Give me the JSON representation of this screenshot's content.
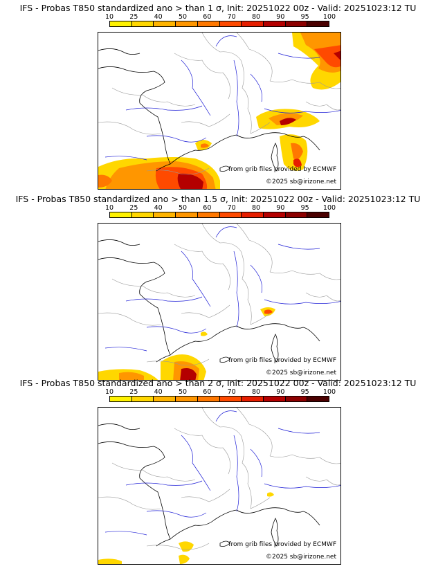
{
  "panels": [
    {
      "title": "IFS - Probas T850  standardized ano > than 1 σ, Init: 20251022 00z - Valid: 20251023:12 TU",
      "credit_source": "from grib files provided by ECMWF",
      "credit_copyright": "©2025 sb@irizone.net"
    },
    {
      "title": "IFS - Probas T850  standardized ano > than 1.5 σ, Init: 20251022 00z - Valid: 20251023:12 TU",
      "credit_source": "from grib files provided by ECMWF",
      "credit_copyright": "©2025 sb@irizone.net"
    },
    {
      "title": "IFS - Probas T850  standardized ano > than 2 σ, Init: 20251022 00z - Valid: 20251023:12 TU",
      "credit_source": "from grib files provided by ECMWF",
      "credit_copyright": "©2025 sb@irizone.net"
    }
  ],
  "legend": {
    "ticks": [
      "10",
      "25",
      "40",
      "50",
      "60",
      "70",
      "80",
      "90",
      "95",
      "100"
    ],
    "colors": [
      "#fff200",
      "#ffd700",
      "#ffb400",
      "#ff9600",
      "#ff7800",
      "#ff4a00",
      "#e61e00",
      "#b40000",
      "#8c0000",
      "#4a0000"
    ]
  },
  "map_colors": {
    "coast": "#000000",
    "borders": "#999999",
    "rivers": "#1f1fd6"
  }
}
